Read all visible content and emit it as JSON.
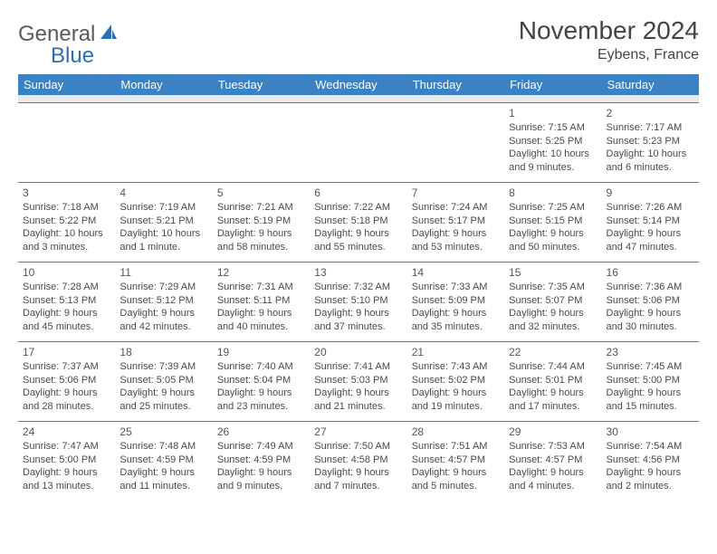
{
  "logo": {
    "part1": "General",
    "part2": "Blue"
  },
  "title": "November 2024",
  "location": "Eybens, France",
  "header_bg": "#3b82c4",
  "header_fg": "#ffffff",
  "border_color": "#3b82c4",
  "spacer_bg": "#e8e8e8",
  "text_color": "#4a4a4a",
  "columns": [
    "Sunday",
    "Monday",
    "Tuesday",
    "Wednesday",
    "Thursday",
    "Friday",
    "Saturday"
  ],
  "weeks": [
    [
      null,
      null,
      null,
      null,
      null,
      {
        "d": "1",
        "sr": "Sunrise: 7:15 AM",
        "ss": "Sunset: 5:25 PM",
        "dl1": "Daylight: 10 hours",
        "dl2": "and 9 minutes."
      },
      {
        "d": "2",
        "sr": "Sunrise: 7:17 AM",
        "ss": "Sunset: 5:23 PM",
        "dl1": "Daylight: 10 hours",
        "dl2": "and 6 minutes."
      }
    ],
    [
      {
        "d": "3",
        "sr": "Sunrise: 7:18 AM",
        "ss": "Sunset: 5:22 PM",
        "dl1": "Daylight: 10 hours",
        "dl2": "and 3 minutes."
      },
      {
        "d": "4",
        "sr": "Sunrise: 7:19 AM",
        "ss": "Sunset: 5:21 PM",
        "dl1": "Daylight: 10 hours",
        "dl2": "and 1 minute."
      },
      {
        "d": "5",
        "sr": "Sunrise: 7:21 AM",
        "ss": "Sunset: 5:19 PM",
        "dl1": "Daylight: 9 hours",
        "dl2": "and 58 minutes."
      },
      {
        "d": "6",
        "sr": "Sunrise: 7:22 AM",
        "ss": "Sunset: 5:18 PM",
        "dl1": "Daylight: 9 hours",
        "dl2": "and 55 minutes."
      },
      {
        "d": "7",
        "sr": "Sunrise: 7:24 AM",
        "ss": "Sunset: 5:17 PM",
        "dl1": "Daylight: 9 hours",
        "dl2": "and 53 minutes."
      },
      {
        "d": "8",
        "sr": "Sunrise: 7:25 AM",
        "ss": "Sunset: 5:15 PM",
        "dl1": "Daylight: 9 hours",
        "dl2": "and 50 minutes."
      },
      {
        "d": "9",
        "sr": "Sunrise: 7:26 AM",
        "ss": "Sunset: 5:14 PM",
        "dl1": "Daylight: 9 hours",
        "dl2": "and 47 minutes."
      }
    ],
    [
      {
        "d": "10",
        "sr": "Sunrise: 7:28 AM",
        "ss": "Sunset: 5:13 PM",
        "dl1": "Daylight: 9 hours",
        "dl2": "and 45 minutes."
      },
      {
        "d": "11",
        "sr": "Sunrise: 7:29 AM",
        "ss": "Sunset: 5:12 PM",
        "dl1": "Daylight: 9 hours",
        "dl2": "and 42 minutes."
      },
      {
        "d": "12",
        "sr": "Sunrise: 7:31 AM",
        "ss": "Sunset: 5:11 PM",
        "dl1": "Daylight: 9 hours",
        "dl2": "and 40 minutes."
      },
      {
        "d": "13",
        "sr": "Sunrise: 7:32 AM",
        "ss": "Sunset: 5:10 PM",
        "dl1": "Daylight: 9 hours",
        "dl2": "and 37 minutes."
      },
      {
        "d": "14",
        "sr": "Sunrise: 7:33 AM",
        "ss": "Sunset: 5:09 PM",
        "dl1": "Daylight: 9 hours",
        "dl2": "and 35 minutes."
      },
      {
        "d": "15",
        "sr": "Sunrise: 7:35 AM",
        "ss": "Sunset: 5:07 PM",
        "dl1": "Daylight: 9 hours",
        "dl2": "and 32 minutes."
      },
      {
        "d": "16",
        "sr": "Sunrise: 7:36 AM",
        "ss": "Sunset: 5:06 PM",
        "dl1": "Daylight: 9 hours",
        "dl2": "and 30 minutes."
      }
    ],
    [
      {
        "d": "17",
        "sr": "Sunrise: 7:37 AM",
        "ss": "Sunset: 5:06 PM",
        "dl1": "Daylight: 9 hours",
        "dl2": "and 28 minutes."
      },
      {
        "d": "18",
        "sr": "Sunrise: 7:39 AM",
        "ss": "Sunset: 5:05 PM",
        "dl1": "Daylight: 9 hours",
        "dl2": "and 25 minutes."
      },
      {
        "d": "19",
        "sr": "Sunrise: 7:40 AM",
        "ss": "Sunset: 5:04 PM",
        "dl1": "Daylight: 9 hours",
        "dl2": "and 23 minutes."
      },
      {
        "d": "20",
        "sr": "Sunrise: 7:41 AM",
        "ss": "Sunset: 5:03 PM",
        "dl1": "Daylight: 9 hours",
        "dl2": "and 21 minutes."
      },
      {
        "d": "21",
        "sr": "Sunrise: 7:43 AM",
        "ss": "Sunset: 5:02 PM",
        "dl1": "Daylight: 9 hours",
        "dl2": "and 19 minutes."
      },
      {
        "d": "22",
        "sr": "Sunrise: 7:44 AM",
        "ss": "Sunset: 5:01 PM",
        "dl1": "Daylight: 9 hours",
        "dl2": "and 17 minutes."
      },
      {
        "d": "23",
        "sr": "Sunrise: 7:45 AM",
        "ss": "Sunset: 5:00 PM",
        "dl1": "Daylight: 9 hours",
        "dl2": "and 15 minutes."
      }
    ],
    [
      {
        "d": "24",
        "sr": "Sunrise: 7:47 AM",
        "ss": "Sunset: 5:00 PM",
        "dl1": "Daylight: 9 hours",
        "dl2": "and 13 minutes."
      },
      {
        "d": "25",
        "sr": "Sunrise: 7:48 AM",
        "ss": "Sunset: 4:59 PM",
        "dl1": "Daylight: 9 hours",
        "dl2": "and 11 minutes."
      },
      {
        "d": "26",
        "sr": "Sunrise: 7:49 AM",
        "ss": "Sunset: 4:59 PM",
        "dl1": "Daylight: 9 hours",
        "dl2": "and 9 minutes."
      },
      {
        "d": "27",
        "sr": "Sunrise: 7:50 AM",
        "ss": "Sunset: 4:58 PM",
        "dl1": "Daylight: 9 hours",
        "dl2": "and 7 minutes."
      },
      {
        "d": "28",
        "sr": "Sunrise: 7:51 AM",
        "ss": "Sunset: 4:57 PM",
        "dl1": "Daylight: 9 hours",
        "dl2": "and 5 minutes."
      },
      {
        "d": "29",
        "sr": "Sunrise: 7:53 AM",
        "ss": "Sunset: 4:57 PM",
        "dl1": "Daylight: 9 hours",
        "dl2": "and 4 minutes."
      },
      {
        "d": "30",
        "sr": "Sunrise: 7:54 AM",
        "ss": "Sunset: 4:56 PM",
        "dl1": "Daylight: 9 hours",
        "dl2": "and 2 minutes."
      }
    ]
  ]
}
